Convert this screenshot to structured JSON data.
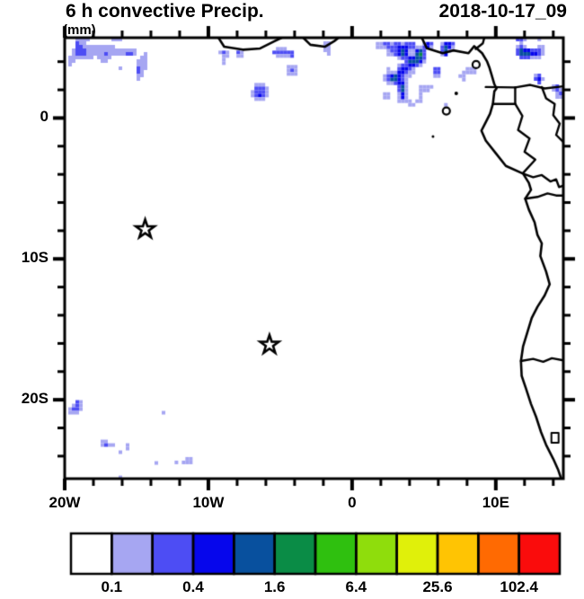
{
  "header": {
    "title": "6 h convective Precip.",
    "timestamp": "2018-10-17_09",
    "units": "(mm)"
  },
  "colors": {
    "frame": "#000000",
    "background": "#ffffff",
    "text": "#000000"
  },
  "chart_data": {
    "type": "heatmap",
    "title": "6 h convective Precip.",
    "subtitle_units": "(mm)",
    "timestamp": "2018-10-17_09",
    "legend_position": "bottom",
    "lon_range": [
      -20,
      14.7
    ],
    "lat_range": [
      -25.6,
      5.7
    ],
    "minor_tick_step": 2,
    "x_major_ticks": [
      {
        "lon": -20,
        "label": "20W"
      },
      {
        "lon": -10,
        "label": "10W"
      },
      {
        "lon": 0,
        "label": "0"
      },
      {
        "lon": 10,
        "label": "10E"
      }
    ],
    "y_major_ticks": [
      {
        "lat": 0,
        "label": "0"
      },
      {
        "lat": -10,
        "label": "10S"
      },
      {
        "lat": -20,
        "label": "20S"
      }
    ],
    "colorbar": {
      "levels": [
        0.1,
        0.2,
        0.4,
        0.8,
        1.6,
        3.2,
        6.4,
        12.8,
        25.6,
        51.2,
        102.4
      ],
      "labeled_boundaries": [
        1,
        3,
        5,
        7,
        9,
        11
      ],
      "labels": [
        "0.1",
        "0.4",
        "1.6",
        "6.4",
        "25.6",
        "102.4"
      ],
      "colors": [
        "#ffffff",
        "#a6a6f2",
        "#4d4df4",
        "#0606ec",
        "#08509e",
        "#0a8c46",
        "#2fc00f",
        "#8fdd0c",
        "#e0f00a",
        "#ffc403",
        "#ff6a02",
        "#fa0c0c"
      ]
    },
    "stars": [
      {
        "lon": -14.4,
        "lat": -7.9
      },
      {
        "lon": -5.75,
        "lat": -16.1
      }
    ],
    "precip_regions": [
      {
        "name": "itcz-band-west",
        "lon": [
          -20,
          -9.8
        ],
        "lat": [
          2.0,
          5.7
        ],
        "density": 0.7,
        "peak": 6,
        "grad": "N",
        "edges": "NW",
        "seed": 3
      },
      {
        "name": "green-blob-ivory-coast",
        "lon": [
          -9.8,
          -3.5
        ],
        "lat": [
          0.9,
          5.55
        ],
        "density": 0.8,
        "peak": 8,
        "grad": "N",
        "edges": "N",
        "seed": 5
      },
      {
        "name": "band-gap-mid",
        "lon": [
          -3.5,
          0.4
        ],
        "lat": [
          3.2,
          5.7
        ],
        "density": 0.55,
        "peak": 5,
        "grad": "N",
        "edges": "N",
        "seed": 7
      },
      {
        "name": "green-blob-gulf-east",
        "lon": [
          0.4,
          9.8
        ],
        "lat": [
          -1.9,
          5.4
        ],
        "density": 0.72,
        "peak": 8,
        "grad": "",
        "edges": "N",
        "seed": 9
      },
      {
        "name": "scatter-northwest",
        "lon": [
          -20,
          -3
        ],
        "lat": [
          -6.8,
          2.6
        ],
        "density": 0.45,
        "peak": 5,
        "grad": "N",
        "edges": "W",
        "seed": 11
      },
      {
        "name": "scatter-central",
        "lon": [
          -3,
          9.8
        ],
        "lat": [
          -6.6,
          0.6
        ],
        "density": 0.22,
        "peak": 4,
        "grad": "N",
        "edges": "",
        "seed": 13
      },
      {
        "name": "cameroon-northeast",
        "lon": [
          10.9,
          14.7
        ],
        "lat": [
          -0.4,
          5.7
        ],
        "density": 0.6,
        "peak": 7,
        "grad": "",
        "edges": "NE",
        "seed": 15
      },
      {
        "name": "congo-east-edge",
        "lon": [
          11.6,
          14.7
        ],
        "lat": [
          -3.4,
          -0.4
        ],
        "density": 0.6,
        "peak": 8,
        "grad": "",
        "edges": "E",
        "seed": 17
      },
      {
        "name": "coastal-congo",
        "lon": [
          9.6,
          12.4
        ],
        "lat": [
          -5.4,
          -3.4
        ],
        "density": 0.45,
        "peak": 5,
        "grad": "",
        "edges": "",
        "seed": 19
      },
      {
        "name": "sparse-southeast",
        "lon": [
          9.6,
          14.7
        ],
        "lat": [
          -6.8,
          -5.4
        ],
        "density": 0.15,
        "peak": 3,
        "grad": "",
        "edges": "E",
        "seed": 25
      },
      {
        "name": "southwest-corner",
        "lon": [
          -20,
          -8.4
        ],
        "lat": [
          -25.6,
          -16.2
        ],
        "density": 0.5,
        "peak": 5,
        "grad": "SW",
        "edges": "SW",
        "seed": 21
      },
      {
        "name": "bottom-strip",
        "lon": [
          -13.6,
          -5.4
        ],
        "lat": [
          -25.6,
          -23.3
        ],
        "density": 0.32,
        "peak": 4,
        "grad": "",
        "edges": "S",
        "seed": 23
      }
    ],
    "coastline": [
      [
        [
          -9.3,
          5.7
        ],
        [
          -8.9,
          5.06
        ],
        [
          -7.6,
          4.85
        ],
        [
          -6.4,
          4.94
        ],
        [
          -5.4,
          5.45
        ],
        [
          -4.9,
          5.7
        ]
      ],
      [
        [
          -3.4,
          5.7
        ],
        [
          -2.9,
          5.2
        ],
        [
          -1.9,
          5.06
        ],
        [
          -1.25,
          5.45
        ],
        [
          -0.94,
          5.7
        ]
      ],
      [
        [
          4.85,
          5.7
        ],
        [
          5.2,
          4.95
        ],
        [
          6.3,
          4.6
        ],
        [
          7.05,
          4.8
        ],
        [
          8.1,
          4.6
        ],
        [
          8.5,
          5.1
        ],
        [
          9.05,
          4.6
        ],
        [
          9.4,
          4.0
        ],
        [
          9.55,
          3.6
        ],
        [
          9.7,
          3.1
        ],
        [
          9.9,
          2.4
        ],
        [
          10.05,
          2.1
        ],
        [
          9.9,
          1.9
        ],
        [
          9.8,
          1.0
        ],
        [
          9.6,
          0.3
        ],
        [
          9.3,
          -0.3
        ],
        [
          9.0,
          -0.9
        ],
        [
          9.3,
          -1.6
        ],
        [
          10.0,
          -2.5
        ],
        [
          10.7,
          -3.4
        ],
        [
          11.9,
          -3.95
        ],
        [
          12.3,
          -4.6
        ],
        [
          12.45,
          -5.1
        ],
        [
          12.05,
          -5.73
        ],
        [
          12.3,
          -6.5
        ],
        [
          12.7,
          -7.4
        ],
        [
          12.9,
          -8.3
        ],
        [
          13.2,
          -8.9
        ],
        [
          13.1,
          -9.8
        ],
        [
          13.5,
          -10.9
        ],
        [
          13.75,
          -11.8
        ],
        [
          13.4,
          -12.6
        ],
        [
          12.9,
          -13.4
        ],
        [
          12.5,
          -14.2
        ],
        [
          12.2,
          -15.2
        ],
        [
          11.9,
          -16.2
        ],
        [
          11.75,
          -17.25
        ],
        [
          11.8,
          -18.3
        ],
        [
          12.1,
          -19.2
        ],
        [
          12.45,
          -20.3
        ],
        [
          12.8,
          -21.2
        ],
        [
          13.15,
          -22.3
        ],
        [
          13.5,
          -23.2
        ],
        [
          14.0,
          -24.2
        ],
        [
          14.35,
          -25.0
        ],
        [
          14.55,
          -25.6
        ]
      ]
    ],
    "borders": [
      [
        [
          8.6,
          4.9
        ],
        [
          9.1,
          5.3
        ],
        [
          9.2,
          5.7
        ]
      ],
      [
        [
          9.3,
          2.2
        ],
        [
          11.35,
          2.17
        ]
      ],
      [
        [
          11.35,
          2.17
        ],
        [
          11.35,
          1.0
        ]
      ],
      [
        [
          9.8,
          1.0
        ],
        [
          11.35,
          1.0
        ]
      ],
      [
        [
          11.35,
          2.17
        ],
        [
          12.4,
          2.35
        ],
        [
          13.4,
          2.1
        ],
        [
          14.7,
          2.25
        ]
      ],
      [
        [
          11.35,
          1.0
        ],
        [
          11.85,
          0.15
        ],
        [
          11.55,
          -0.85
        ],
        [
          12.35,
          -1.45
        ],
        [
          12.0,
          -2.4
        ],
        [
          12.75,
          -2.95
        ],
        [
          11.9,
          -3.9
        ]
      ],
      [
        [
          13.2,
          2.2
        ],
        [
          13.5,
          1.4
        ],
        [
          14.1,
          1.0
        ],
        [
          14.0,
          0.2
        ],
        [
          14.45,
          -0.4
        ],
        [
          14.2,
          -1.2
        ],
        [
          14.7,
          -1.7
        ]
      ],
      [
        [
          11.9,
          -3.95
        ],
        [
          12.6,
          -4.2
        ],
        [
          13.2,
          -4.05
        ],
        [
          13.8,
          -4.5
        ],
        [
          14.2,
          -4.35
        ],
        [
          14.4,
          -4.9
        ],
        [
          14.7,
          -4.8
        ]
      ],
      [
        [
          12.05,
          -5.73
        ],
        [
          12.9,
          -5.6
        ],
        [
          13.6,
          -5.35
        ],
        [
          14.2,
          -5.5
        ],
        [
          14.7,
          -5.5
        ]
      ],
      [
        [
          11.75,
          -17.25
        ],
        [
          12.6,
          -17.1
        ],
        [
          13.3,
          -17.3
        ],
        [
          13.9,
          -17.05
        ],
        [
          14.7,
          -17.2
        ]
      ]
    ],
    "islands": [
      {
        "name": "bioko",
        "lon": 8.63,
        "lat": 3.79,
        "r": 4,
        "fill": false
      },
      {
        "name": "principe",
        "lon": 7.25,
        "lat": 1.75,
        "r": 2,
        "fill": true
      },
      {
        "name": "sao-tome",
        "lon": 6.56,
        "lat": 0.5,
        "r": 4,
        "fill": false
      },
      {
        "name": "annobon",
        "lon": 5.63,
        "lat": -1.31,
        "r": 1.5,
        "fill": true
      }
    ],
    "coast_rect": {
      "lon": 14.12,
      "lat": -22.66
    }
  }
}
